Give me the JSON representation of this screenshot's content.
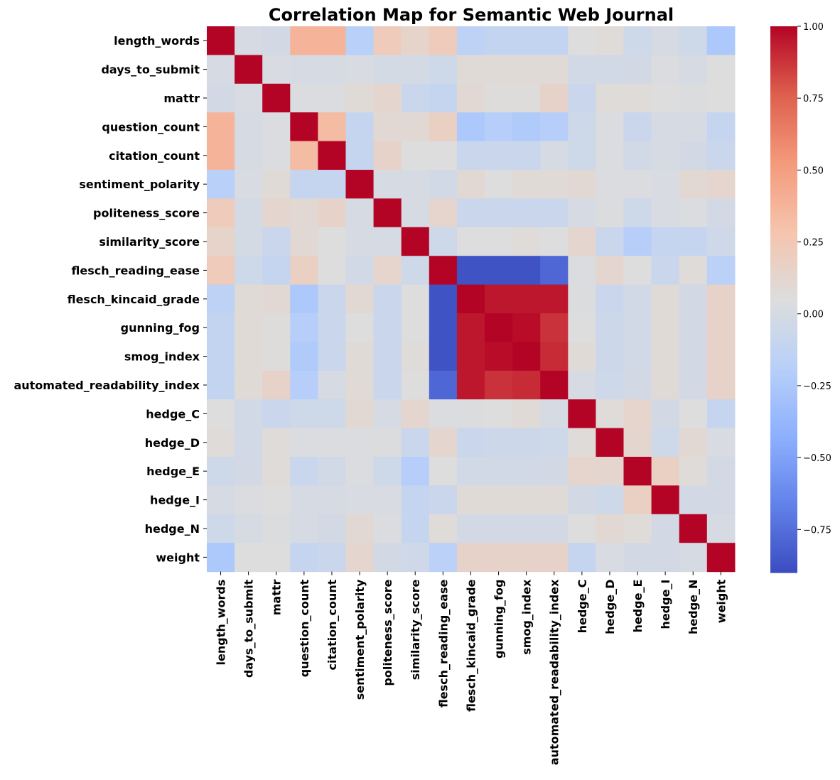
{
  "chart_data": {
    "type": "heatmap",
    "title": "Correlation Map for Semantic Web Journal",
    "labels": [
      "length_words",
      "days_to_submit",
      "mattr",
      "question_count",
      "citation_count",
      "sentiment_polarity",
      "politeness_score",
      "similarity_score",
      "flesch_reading_ease",
      "flesch_kincaid_grade",
      "gunning_fog",
      "smog_index",
      "automated_readability_index",
      "hedge_C",
      "hedge_D",
      "hedge_E",
      "hedge_I",
      "hedge_N",
      "weight"
    ],
    "matrix": [
      [
        1.0,
        0.0,
        -0.02,
        0.38,
        0.38,
        -0.18,
        0.22,
        0.14,
        0.22,
        -0.15,
        -0.12,
        -0.12,
        -0.12,
        0.05,
        0.07,
        -0.05,
        0.0,
        -0.05,
        -0.25
      ],
      [
        0.0,
        1.0,
        0.02,
        0.0,
        0.0,
        0.02,
        -0.01,
        -0.01,
        -0.05,
        0.08,
        0.08,
        0.08,
        0.08,
        -0.03,
        -0.03,
        -0.02,
        0.03,
        0.0,
        0.05
      ],
      [
        -0.02,
        0.02,
        1.0,
        0.03,
        0.03,
        0.08,
        0.12,
        -0.07,
        -0.1,
        0.1,
        0.06,
        0.06,
        0.15,
        -0.08,
        0.07,
        0.07,
        0.05,
        0.04,
        0.05
      ],
      [
        0.38,
        0.0,
        0.03,
        1.0,
        0.33,
        -0.1,
        0.1,
        0.1,
        0.18,
        -0.25,
        -0.2,
        -0.23,
        -0.2,
        -0.05,
        0.03,
        -0.07,
        0.0,
        0.0,
        -0.1
      ],
      [
        0.38,
        0.0,
        0.03,
        0.33,
        1.0,
        -0.1,
        0.15,
        0.05,
        0.05,
        -0.08,
        -0.08,
        -0.08,
        0.0,
        -0.05,
        0.03,
        -0.03,
        0.0,
        -0.02,
        -0.07
      ],
      [
        -0.18,
        0.02,
        0.08,
        -0.1,
        -0.1,
        1.0,
        0.0,
        0.0,
        -0.03,
        0.1,
        0.05,
        0.08,
        0.08,
        0.1,
        0.03,
        0.03,
        0.02,
        0.1,
        0.12
      ],
      [
        0.22,
        -0.01,
        0.12,
        0.1,
        0.15,
        0.0,
        1.0,
        0.0,
        0.13,
        -0.08,
        -0.08,
        -0.08,
        -0.08,
        0.0,
        0.04,
        -0.05,
        0.02,
        0.03,
        -0.02
      ],
      [
        0.14,
        -0.01,
        -0.07,
        0.1,
        0.05,
        0.0,
        0.0,
        1.0,
        -0.05,
        0.05,
        0.05,
        0.07,
        0.05,
        0.12,
        -0.08,
        -0.2,
        -0.1,
        -0.1,
        -0.04
      ],
      [
        0.22,
        -0.05,
        -0.1,
        0.18,
        0.05,
        -0.03,
        0.13,
        -0.05,
        1.0,
        -0.87,
        -0.87,
        -0.87,
        -0.78,
        0.03,
        0.12,
        0.05,
        -0.08,
        0.07,
        -0.17
      ],
      [
        -0.15,
        0.08,
        0.1,
        -0.25,
        -0.08,
        0.1,
        -0.08,
        0.05,
        -0.87,
        1.0,
        0.95,
        0.95,
        0.95,
        0.04,
        -0.07,
        -0.03,
        0.08,
        -0.02,
        0.15
      ],
      [
        -0.12,
        0.08,
        0.06,
        -0.2,
        -0.08,
        0.05,
        -0.08,
        0.05,
        -0.87,
        0.95,
        1.0,
        0.98,
        0.88,
        0.05,
        -0.06,
        -0.03,
        0.08,
        -0.02,
        0.15
      ],
      [
        -0.12,
        0.08,
        0.06,
        -0.23,
        -0.08,
        0.08,
        -0.08,
        0.07,
        -0.87,
        0.95,
        0.98,
        1.0,
        0.9,
        0.08,
        -0.06,
        -0.03,
        0.08,
        -0.02,
        0.15
      ],
      [
        -0.12,
        0.08,
        0.15,
        -0.2,
        0.0,
        0.08,
        -0.08,
        0.05,
        -0.78,
        0.95,
        0.88,
        0.9,
        1.0,
        0.0,
        -0.05,
        -0.02,
        0.08,
        -0.02,
        0.15
      ],
      [
        0.05,
        -0.03,
        -0.08,
        -0.05,
        -0.05,
        0.1,
        0.0,
        0.12,
        0.03,
        0.04,
        0.05,
        0.08,
        0.0,
        1.0,
        0.07,
        0.13,
        -0.02,
        0.05,
        -0.1
      ],
      [
        0.07,
        -0.03,
        0.07,
        0.03,
        0.03,
        0.03,
        0.04,
        -0.08,
        0.12,
        -0.07,
        -0.06,
        -0.06,
        -0.05,
        0.07,
        1.0,
        0.12,
        -0.05,
        0.1,
        0.02
      ],
      [
        -0.05,
        -0.02,
        0.07,
        -0.07,
        -0.03,
        0.03,
        -0.05,
        -0.2,
        0.05,
        -0.03,
        -0.03,
        -0.03,
        -0.02,
        0.13,
        0.12,
        1.0,
        0.18,
        0.07,
        -0.02
      ],
      [
        0.0,
        0.03,
        0.05,
        0.0,
        0.0,
        0.02,
        0.02,
        -0.1,
        -0.08,
        0.08,
        0.08,
        0.08,
        0.08,
        -0.02,
        -0.05,
        0.18,
        1.0,
        -0.02,
        -0.02
      ],
      [
        -0.05,
        0.0,
        0.04,
        0.0,
        -0.02,
        0.1,
        0.03,
        -0.1,
        0.07,
        -0.02,
        -0.02,
        -0.02,
        -0.02,
        0.05,
        0.1,
        0.07,
        -0.02,
        1.0,
        0.0
      ],
      [
        -0.25,
        0.05,
        0.05,
        -0.1,
        -0.07,
        0.12,
        -0.02,
        -0.04,
        -0.17,
        0.15,
        0.15,
        0.15,
        0.15,
        -0.1,
        0.02,
        -0.02,
        -0.02,
        0.0,
        1.0
      ]
    ],
    "vmin": -0.9,
    "vmax": 1.0,
    "colormap": "coolwarm",
    "colorbar_ticks": [
      "1.00",
      "0.75",
      "0.50",
      "0.25",
      "0.00",
      "−0.25",
      "−0.50",
      "−0.75"
    ],
    "colorbar_tick_values": [
      1.0,
      0.75,
      0.5,
      0.25,
      0.0,
      -0.25,
      -0.5,
      -0.75
    ]
  }
}
